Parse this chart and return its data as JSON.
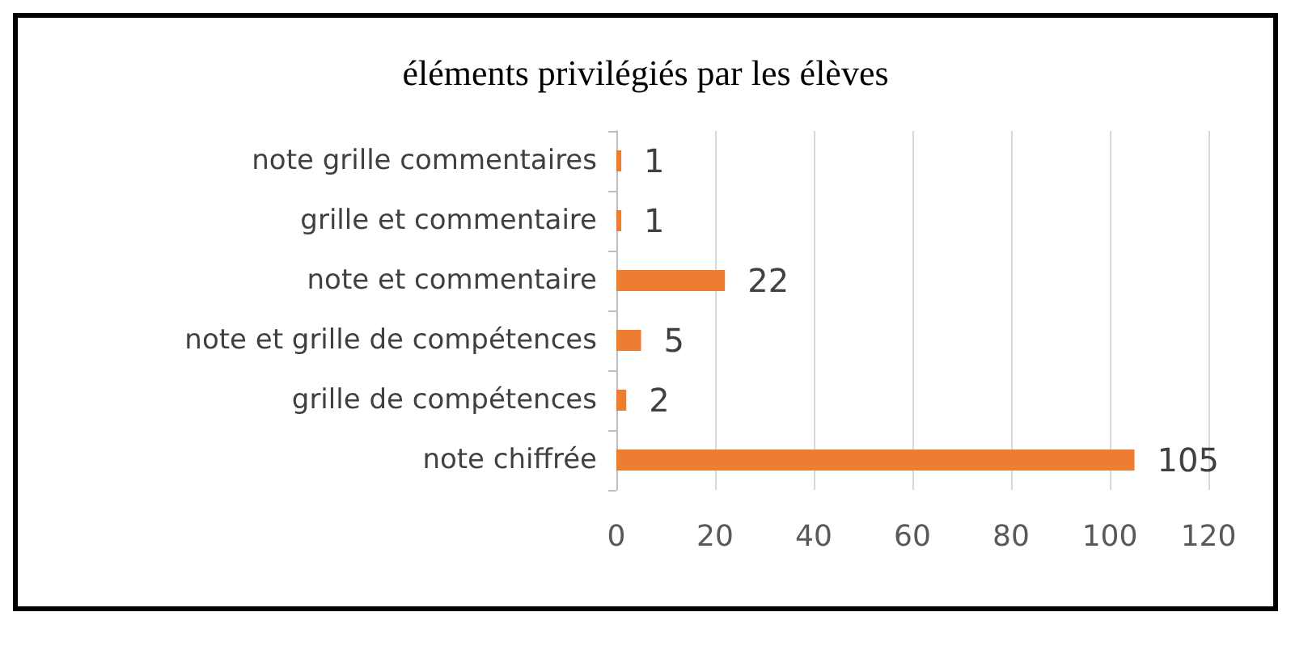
{
  "chart_data": {
    "type": "bar",
    "orientation": "horizontal",
    "title": "éléments privilégiés par les élèves",
    "categories": [
      "note grille commentaires",
      "grille et commentaire",
      "note et commentaire",
      "note et grille de compétences",
      "grille de compétences",
      "note chiffrée"
    ],
    "values": [
      1,
      1,
      22,
      5,
      2,
      105
    ],
    "color": "#ed7d31",
    "xlim": [
      0,
      120
    ],
    "xticks": [
      0,
      20,
      40,
      60,
      80,
      100,
      120
    ],
    "grid": "x",
    "data_labels": true
  }
}
